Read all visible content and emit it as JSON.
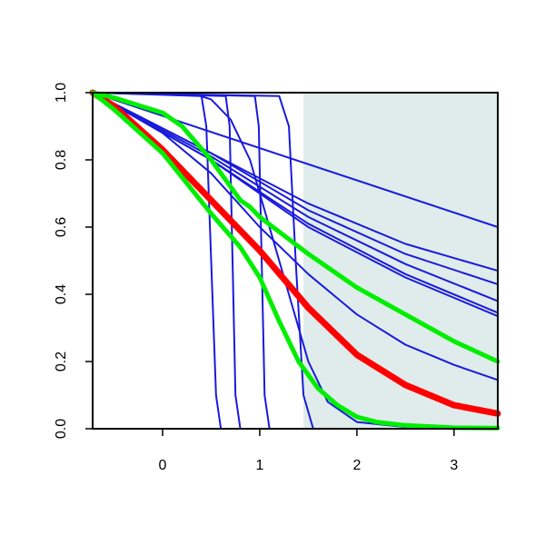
{
  "chart_data": {
    "type": "line",
    "title": "",
    "xlabel": "",
    "ylabel": "",
    "xlim": [
      -0.72,
      3.45
    ],
    "ylim": [
      0,
      1
    ],
    "x_ticks": [
      "0",
      "1",
      "2",
      "3"
    ],
    "y_ticks": [
      "0.0",
      "0.2",
      "0.4",
      "0.6",
      "0.8",
      "1.0"
    ],
    "shaded_region": {
      "x_from": 1.45,
      "x_to": 3.45,
      "y_from": 0,
      "y_to": 1,
      "color": "#dfeceb"
    },
    "colors": {
      "thin_series": "#1a1adc",
      "red_series": "#ff0000",
      "green_series": "#00ee00",
      "axis": "#000000"
    },
    "series": [
      {
        "color": "blue",
        "values_x": [
          -0.72,
          0.4,
          0.45,
          0.5,
          0.55,
          0.6,
          3.45
        ],
        "values_y": [
          1,
          0.99,
          0.9,
          0.5,
          0.1,
          0.0,
          0
        ]
      },
      {
        "color": "blue",
        "values_x": [
          -0.72,
          0.65,
          0.69,
          0.72,
          0.75,
          0.8,
          3.45
        ],
        "values_y": [
          1,
          0.99,
          0.9,
          0.5,
          0.1,
          0.0,
          0
        ]
      },
      {
        "color": "blue",
        "values_x": [
          -0.72,
          0.95,
          0.99,
          1.02,
          1.05,
          1.1,
          3.45
        ],
        "values_y": [
          1,
          0.99,
          0.9,
          0.5,
          0.1,
          0.0,
          0
        ]
      },
      {
        "color": "blue",
        "values_x": [
          -0.72,
          1.2,
          1.3,
          1.37,
          1.45,
          1.55,
          3.45
        ],
        "values_y": [
          1,
          0.99,
          0.9,
          0.5,
          0.1,
          0.0,
          0
        ]
      },
      {
        "color": "blue",
        "values_x": [
          -0.72,
          0.3,
          0.5,
          0.7,
          0.9,
          1.1,
          1.3,
          1.5,
          1.7,
          2.0,
          2.5,
          3.45
        ],
        "values_y": [
          1,
          0.998,
          0.98,
          0.92,
          0.8,
          0.6,
          0.4,
          0.2,
          0.08,
          0.02,
          0.005,
          0
        ]
      },
      {
        "color": "blue",
        "values_x": [
          -0.72,
          3.45
        ],
        "values_y": [
          1,
          0.6
        ]
      },
      {
        "color": "blue",
        "values_x": [
          -0.72,
          0.5,
          1.5,
          2.5,
          3.45
        ],
        "values_y": [
          1,
          0.82,
          0.67,
          0.55,
          0.47
        ]
      },
      {
        "color": "blue",
        "values_x": [
          -0.72,
          0.5,
          1.5,
          2.5,
          3.45
        ],
        "values_y": [
          1,
          0.82,
          0.65,
          0.52,
          0.43
        ]
      },
      {
        "color": "blue",
        "values_x": [
          -0.72,
          0.5,
          1.5,
          2.5,
          3.45
        ],
        "values_y": [
          1,
          0.81,
          0.63,
          0.49,
          0.38
        ]
      },
      {
        "color": "blue",
        "values_x": [
          -0.72,
          0.5,
          1.5,
          2.5,
          3.45
        ],
        "values_y": [
          1,
          0.8,
          0.61,
          0.46,
          0.345
        ]
      },
      {
        "color": "blue",
        "values_x": [
          -0.72,
          0.5,
          1.5,
          2.5,
          3.45
        ],
        "values_y": [
          1,
          0.8,
          0.6,
          0.45,
          0.335
        ]
      },
      {
        "color": "blue",
        "values_x": [
          -0.72,
          0.0,
          0.5,
          1.0,
          1.5,
          2.0,
          2.5,
          3.0,
          3.45
        ],
        "values_y": [
          1,
          0.88,
          0.76,
          0.6,
          0.46,
          0.34,
          0.25,
          0.19,
          0.145
        ]
      },
      {
        "color": "red",
        "values_x": [
          -0.72,
          -0.5,
          0.0,
          0.5,
          1.0,
          1.5,
          2.0,
          2.5,
          3.0,
          3.45
        ],
        "values_y": [
          1,
          0.96,
          0.83,
          0.68,
          0.53,
          0.36,
          0.22,
          0.13,
          0.07,
          0.045
        ]
      },
      {
        "color": "green",
        "values_x": [
          -0.72,
          -0.5,
          0.0,
          0.2,
          0.5,
          0.8,
          0.9,
          1.0,
          1.5,
          2.0,
          2.5,
          3.0,
          3.45
        ],
        "values_y": [
          1,
          0.985,
          0.94,
          0.9,
          0.8,
          0.68,
          0.66,
          0.63,
          0.52,
          0.42,
          0.34,
          0.26,
          0.2
        ]
      },
      {
        "color": "green",
        "values_x": [
          -0.72,
          -0.5,
          0.0,
          0.5,
          0.8,
          1.0,
          1.2,
          1.4,
          1.6,
          1.8,
          2.0,
          2.2,
          2.5,
          3.0,
          3.45
        ],
        "values_y": [
          1,
          0.95,
          0.82,
          0.64,
          0.54,
          0.45,
          0.32,
          0.2,
          0.12,
          0.07,
          0.035,
          0.02,
          0.01,
          0.003,
          0.002
        ]
      }
    ]
  }
}
